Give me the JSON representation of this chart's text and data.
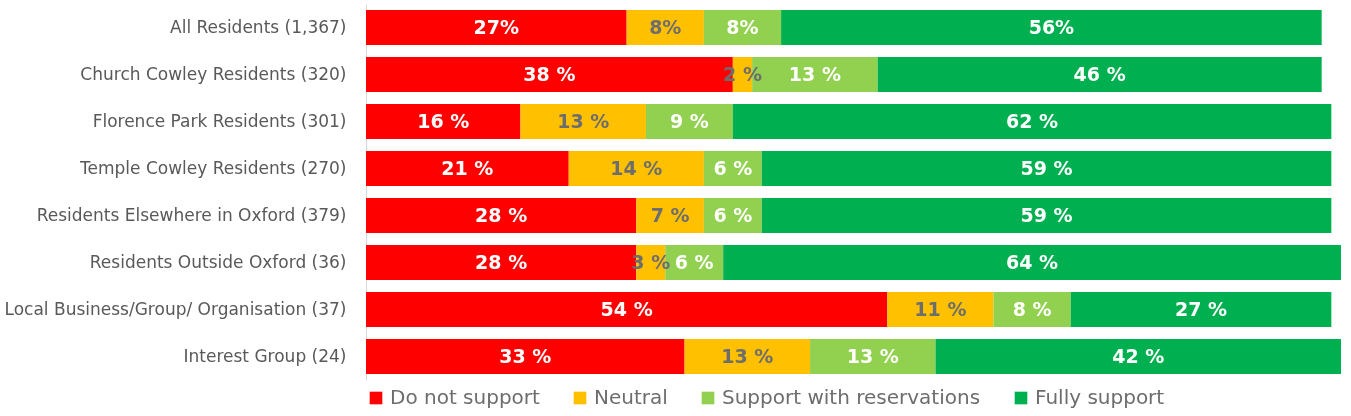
{
  "chart_data": {
    "type": "bar",
    "orientation": "horizontal",
    "stacked": true,
    "legend": "bottom",
    "categories": [
      "All Residents (1,367)",
      "Church Cowley Residents (320)",
      "Florence Park Residents (301)",
      "Temple Cowley Residents (270)",
      "Residents Elsewhere in Oxford (379)",
      "Residents Outside Oxford (36)",
      "Local Business/Group/ Organisation (37)",
      "Interest Group (24)"
    ],
    "series": [
      {
        "name": "Do not support",
        "color": "#ff0000",
        "values": [
          27,
          38,
          16,
          21,
          28,
          28,
          54,
          33
        ],
        "value_labels": [
          "27%",
          "38 %",
          "16 %",
          "21 %",
          "28 %",
          "28 %",
          "54 %",
          "33 %"
        ]
      },
      {
        "name": "Neutral",
        "color": "#ffc000",
        "values": [
          8,
          2,
          13,
          14,
          7,
          3,
          11,
          13
        ],
        "value_labels": [
          "8%",
          "2 %",
          "13 %",
          "14 %",
          "7 %",
          "3 %",
          "11 %",
          "13 %"
        ]
      },
      {
        "name": "Support with reservations",
        "color": "#92d050",
        "values": [
          8,
          13,
          9,
          6,
          6,
          6,
          8,
          13
        ],
        "value_labels": [
          "8%",
          "13 %",
          "9 %",
          "6 %",
          "6 %",
          "6 %",
          "8 %",
          "13 %"
        ]
      },
      {
        "name": "Fully support",
        "color": "#00b050",
        "values": [
          56,
          46,
          62,
          59,
          59,
          64,
          27,
          42
        ],
        "value_labels": [
          "56%",
          "46 %",
          "62 %",
          "59 %",
          "59 %",
          "64 %",
          "27 %",
          "42 %"
        ]
      }
    ]
  }
}
